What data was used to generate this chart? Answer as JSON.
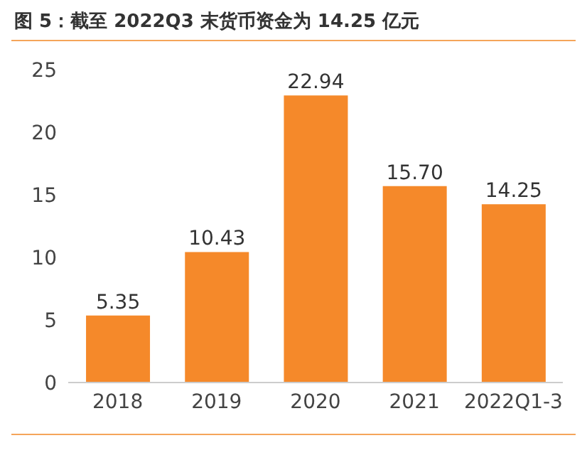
{
  "chart_data": {
    "type": "bar",
    "title": "图 5：截至 2022Q3 末货币资金为 14.25 亿元",
    "categories": [
      "2018",
      "2019",
      "2020",
      "2021",
      "2022Q1-3"
    ],
    "values": [
      5.35,
      10.43,
      22.94,
      15.7,
      14.25
    ],
    "value_labels": [
      "5.35",
      "10.43",
      "22.94",
      "15.70",
      "14.25"
    ],
    "color": "#f5892a",
    "ylim": [
      0,
      25
    ],
    "yticks": [
      0,
      5,
      10,
      15,
      20,
      25
    ],
    "grid": false,
    "legend": false
  }
}
